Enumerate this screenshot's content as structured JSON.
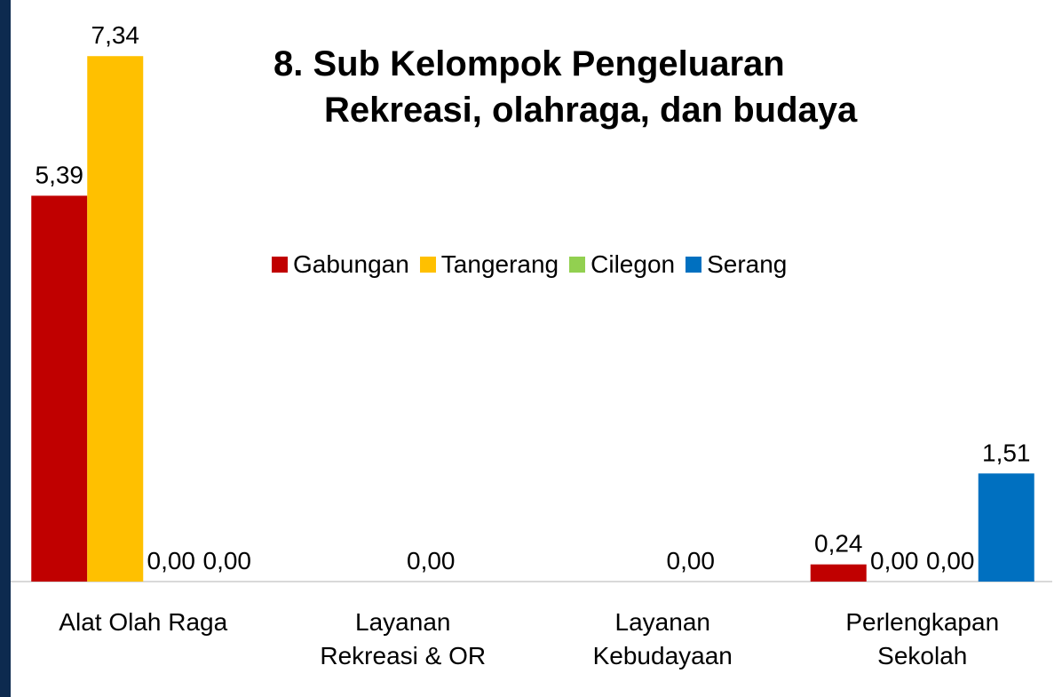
{
  "chart_data": {
    "type": "bar",
    "title": "8. Sub Kelompok Pengeluaran Rekreasi, olahraga, dan budaya",
    "categories": [
      "Alat Olah Raga",
      "Layanan\nRekreasi & OR",
      "Layanan\nKebudayaan",
      "Perlengkapan\nSekolah"
    ],
    "series": [
      {
        "name": "Gabungan",
        "color": "#c00000",
        "values": [
          5.39,
          null,
          null,
          0.24
        ],
        "value_labels": [
          "5,39",
          null,
          null,
          "0,24"
        ]
      },
      {
        "name": "Tangerang",
        "color": "#ffc000",
        "values": [
          7.34,
          null,
          null,
          0
        ],
        "value_labels": [
          "7,34",
          null,
          null,
          "0,00"
        ]
      },
      {
        "name": "Cilegon",
        "color": "#92d050",
        "values": [
          0,
          0,
          0,
          0
        ],
        "value_labels": [
          "0,00",
          "0,00",
          "0,00",
          "0,00"
        ]
      },
      {
        "name": "Serang",
        "color": "#0070c0",
        "values": [
          0,
          null,
          null,
          1.51
        ],
        "value_labels": [
          "0,00",
          null,
          null,
          "1,51"
        ]
      }
    ],
    "ylim": [
      0,
      8
    ],
    "legend": "top"
  }
}
